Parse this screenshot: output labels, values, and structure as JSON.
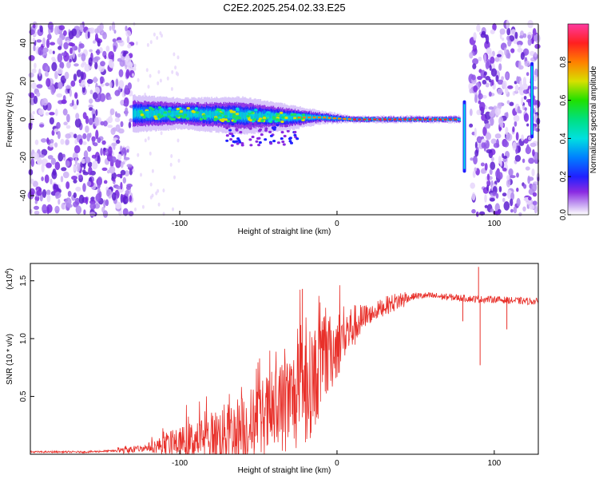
{
  "title": "C2E2.2025.254.02.33.E25",
  "colors": {
    "snr_line": "#e8302a",
    "axis": "#000000",
    "noise": "#7a2be0"
  },
  "chart_data": [
    {
      "type": "heatmap",
      "name": "spectrogram",
      "xlabel": "Height of straight line (km)",
      "ylabel": "Frequency (Hz)",
      "xlim": [
        -195,
        128
      ],
      "ylim": [
        -50,
        50
      ],
      "xticks": [
        -100,
        0,
        100
      ],
      "xtick_labels": [
        "-100",
        "0",
        "100"
      ],
      "yticks": [
        -40,
        -20,
        0,
        20,
        40
      ],
      "ytick_labels": [
        "-40",
        "-20",
        "0",
        "20",
        "40"
      ],
      "noise_regions_x": [
        [
          -195,
          -130
        ],
        [
          85,
          128
        ]
      ],
      "signal_band": [
        {
          "x": -130,
          "center": 3,
          "half_width": 6
        },
        {
          "x": -100,
          "center": 3,
          "half_width": 5
        },
        {
          "x": -60,
          "center": 2,
          "half_width": 6
        },
        {
          "x": -30,
          "center": 1,
          "half_width": 4
        },
        {
          "x": -10,
          "center": 1,
          "half_width": 2
        },
        {
          "x": 10,
          "center": 0,
          "half_width": 1
        },
        {
          "x": 78,
          "center": 0,
          "half_width": 1
        }
      ],
      "colorbar": {
        "label": "Normalized spectral amplitude",
        "range": [
          0,
          1
        ],
        "ticks": [
          0.0,
          0.2,
          0.4,
          0.6,
          0.8
        ],
        "tick_labels": [
          "0.0",
          "0.2",
          "0.4",
          "0.6",
          "0.8"
        ]
      }
    },
    {
      "type": "line",
      "name": "snr",
      "xlabel": "Height of straight line (km)",
      "ylabel": "SNR (10 * v/v)",
      "y_multiplier": "(x10",
      "y_multiplier_exp": "4",
      "y_multiplier_close": ")",
      "xlim": [
        -195,
        128
      ],
      "ylim": [
        0,
        1.65
      ],
      "xticks": [
        -100,
        0,
        100
      ],
      "xtick_labels": [
        "-100",
        "0",
        "100"
      ],
      "yticks": [
        0.5,
        1.0,
        1.5
      ],
      "ytick_labels": [
        "0.5",
        "1.0",
        "1.5"
      ],
      "series": [
        {
          "name": "SNR",
          "x": [
            -195,
            -160,
            -140,
            -130,
            -120,
            -100,
            -80,
            -60,
            -50,
            -40,
            -30,
            -20,
            -10,
            0,
            10,
            20,
            30,
            40,
            50,
            60,
            70,
            80,
            90,
            100,
            110,
            128
          ],
          "y": [
            0.02,
            0.02,
            0.03,
            0.04,
            0.06,
            0.1,
            0.15,
            0.22,
            0.28,
            0.35,
            0.45,
            0.55,
            0.75,
            0.95,
            1.1,
            1.2,
            1.28,
            1.33,
            1.37,
            1.37,
            1.36,
            1.35,
            1.34,
            1.34,
            1.33,
            1.32
          ]
        }
      ],
      "spikes": [
        {
          "x": -22,
          "y": 1.43
        },
        {
          "x": 90,
          "y": 1.62
        },
        {
          "x": 91,
          "y": 0.77
        },
        {
          "x": 108,
          "y": 1.08
        },
        {
          "x": 80,
          "y": 1.15
        }
      ]
    }
  ]
}
